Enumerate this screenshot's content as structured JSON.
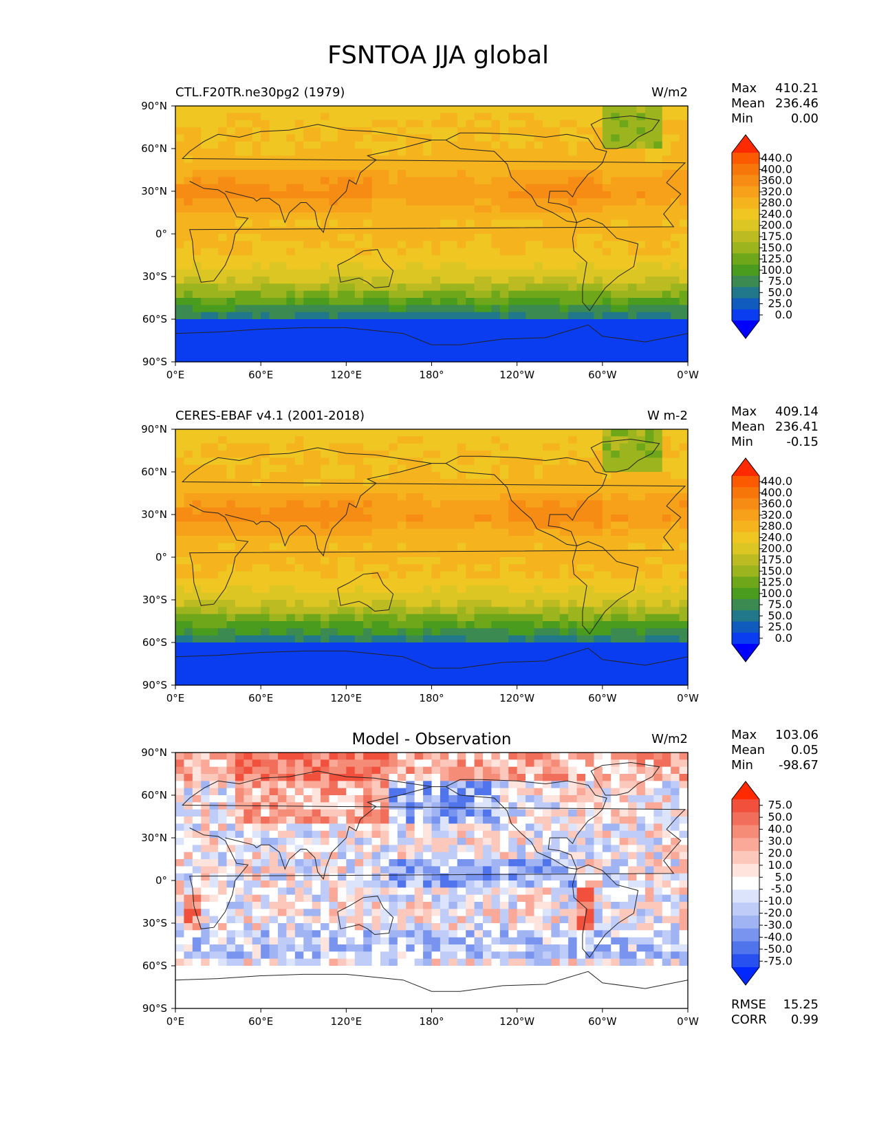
{
  "chart_data": {
    "type": "heatmap",
    "title": "FSNTOA JJA global",
    "panels": [
      {
        "id": "model",
        "left_title": "CTL.F20TR.ne30pg2 (1979)",
        "center_title": "",
        "units": "W/m2",
        "stats": [
          [
            "Max",
            "410.21"
          ],
          [
            "Mean",
            "236.46"
          ],
          [
            "Min",
            "0.00"
          ]
        ],
        "colorbar": {
          "labels": [
            "440.0",
            "400.0",
            "360.0",
            "320.0",
            "280.0",
            "240.0",
            "200.0",
            "175.0",
            "150.0",
            "125.0",
            "100.0",
            "75.0",
            "50.0",
            "25.0",
            "0.0"
          ],
          "colors": [
            "#ff2a00",
            "#fb5a00",
            "#f7760a",
            "#f78c14",
            "#f7a01a",
            "#f5b41e",
            "#efc622",
            "#dcc624",
            "#bcbc22",
            "#9cb41e",
            "#6ea81a",
            "#4a9c1e",
            "#3a8a52",
            "#20788a",
            "#0f5cbe",
            "#0a3cf0",
            "#0000ff"
          ],
          "description": "Sequential extended colorbar, levels from 0 to 440 W/m2"
        },
        "field_description": "Top-of-atmosphere net shortwave flux: about 320-400 over subtropics and northern summer hemisphere, ~250-300 near equator, ~120-220 over Greenland and high northern latitudes, decreasing to near 0 over Antarctica in southern winter"
      },
      {
        "id": "obs",
        "left_title": "CERES-EBAF v4.1 (2001-2018)",
        "center_title": "",
        "units": "W m-2",
        "stats": [
          [
            "Max",
            "409.14"
          ],
          [
            "Mean",
            "236.41"
          ],
          [
            "Min",
            "-0.15"
          ]
        ],
        "colorbar": {
          "labels": [
            "440.0",
            "400.0",
            "360.0",
            "320.0",
            "280.0",
            "240.0",
            "200.0",
            "175.0",
            "150.0",
            "125.0",
            "100.0",
            "75.0",
            "50.0",
            "25.0",
            "0.0"
          ],
          "colors": [
            "#ff2a00",
            "#fb5a00",
            "#f7760a",
            "#f78c14",
            "#f7a01a",
            "#f5b41e",
            "#efc622",
            "#dcc624",
            "#bcbc22",
            "#9cb41e",
            "#6ea81a",
            "#4a9c1e",
            "#3a8a52",
            "#20788a",
            "#0f5cbe",
            "#0a3cf0",
            "#0000ff"
          ],
          "description": "Same levels as model panel"
        },
        "field_description": "Observed pattern similar to the model, slightly more uniform northern subtropical maxima"
      },
      {
        "id": "diff",
        "left_title": "",
        "center_title": "Model - Observation",
        "units": "W/m2",
        "stats": [
          [
            "Max",
            "103.06"
          ],
          [
            "Mean",
            "0.05"
          ],
          [
            "Min",
            "-98.67"
          ]
        ],
        "extra_stats": [
          [
            "RMSE",
            "15.25"
          ],
          [
            "CORR",
            "0.99"
          ]
        ],
        "colorbar": {
          "labels": [
            "75.0",
            "50.0",
            "40.0",
            "30.0",
            "20.0",
            "10.0",
            "5.0",
            "-5.0",
            "-10.0",
            "-20.0",
            "-30.0",
            "-40.0",
            "-50.0",
            "-75.0"
          ],
          "colors": [
            "#ff2a00",
            "#f0503c",
            "#f06e5a",
            "#f58c78",
            "#faa898",
            "#fcc8bc",
            "#fee4dc",
            "#ffffff",
            "#dce4fc",
            "#c0ccf8",
            "#a0b4f4",
            "#7894ee",
            "#5074ec",
            "#2850f0",
            "#0028ff"
          ],
          "description": "Diverging colorbar, red positive (model higher), blue negative"
        },
        "field_description": "Differences within about +/-100 W/m2: positive over Eurasia, Arctic and west coasts of South America / southern Africa; negative over tropical Pacific, North Pacific and Southern Ocean belt; near zero over Antarctica"
      }
    ],
    "map": {
      "x_ticks": [
        "0°E",
        "60°E",
        "120°E",
        "180°",
        "120°W",
        "60°W",
        "0°W"
      ],
      "y_ticks": [
        "90°N",
        "60°N",
        "30°N",
        "0°",
        "30°S",
        "60°S",
        "90°S"
      ],
      "x_range_deg": [
        0,
        360
      ],
      "y_range_deg": [
        -90,
        90
      ]
    }
  }
}
